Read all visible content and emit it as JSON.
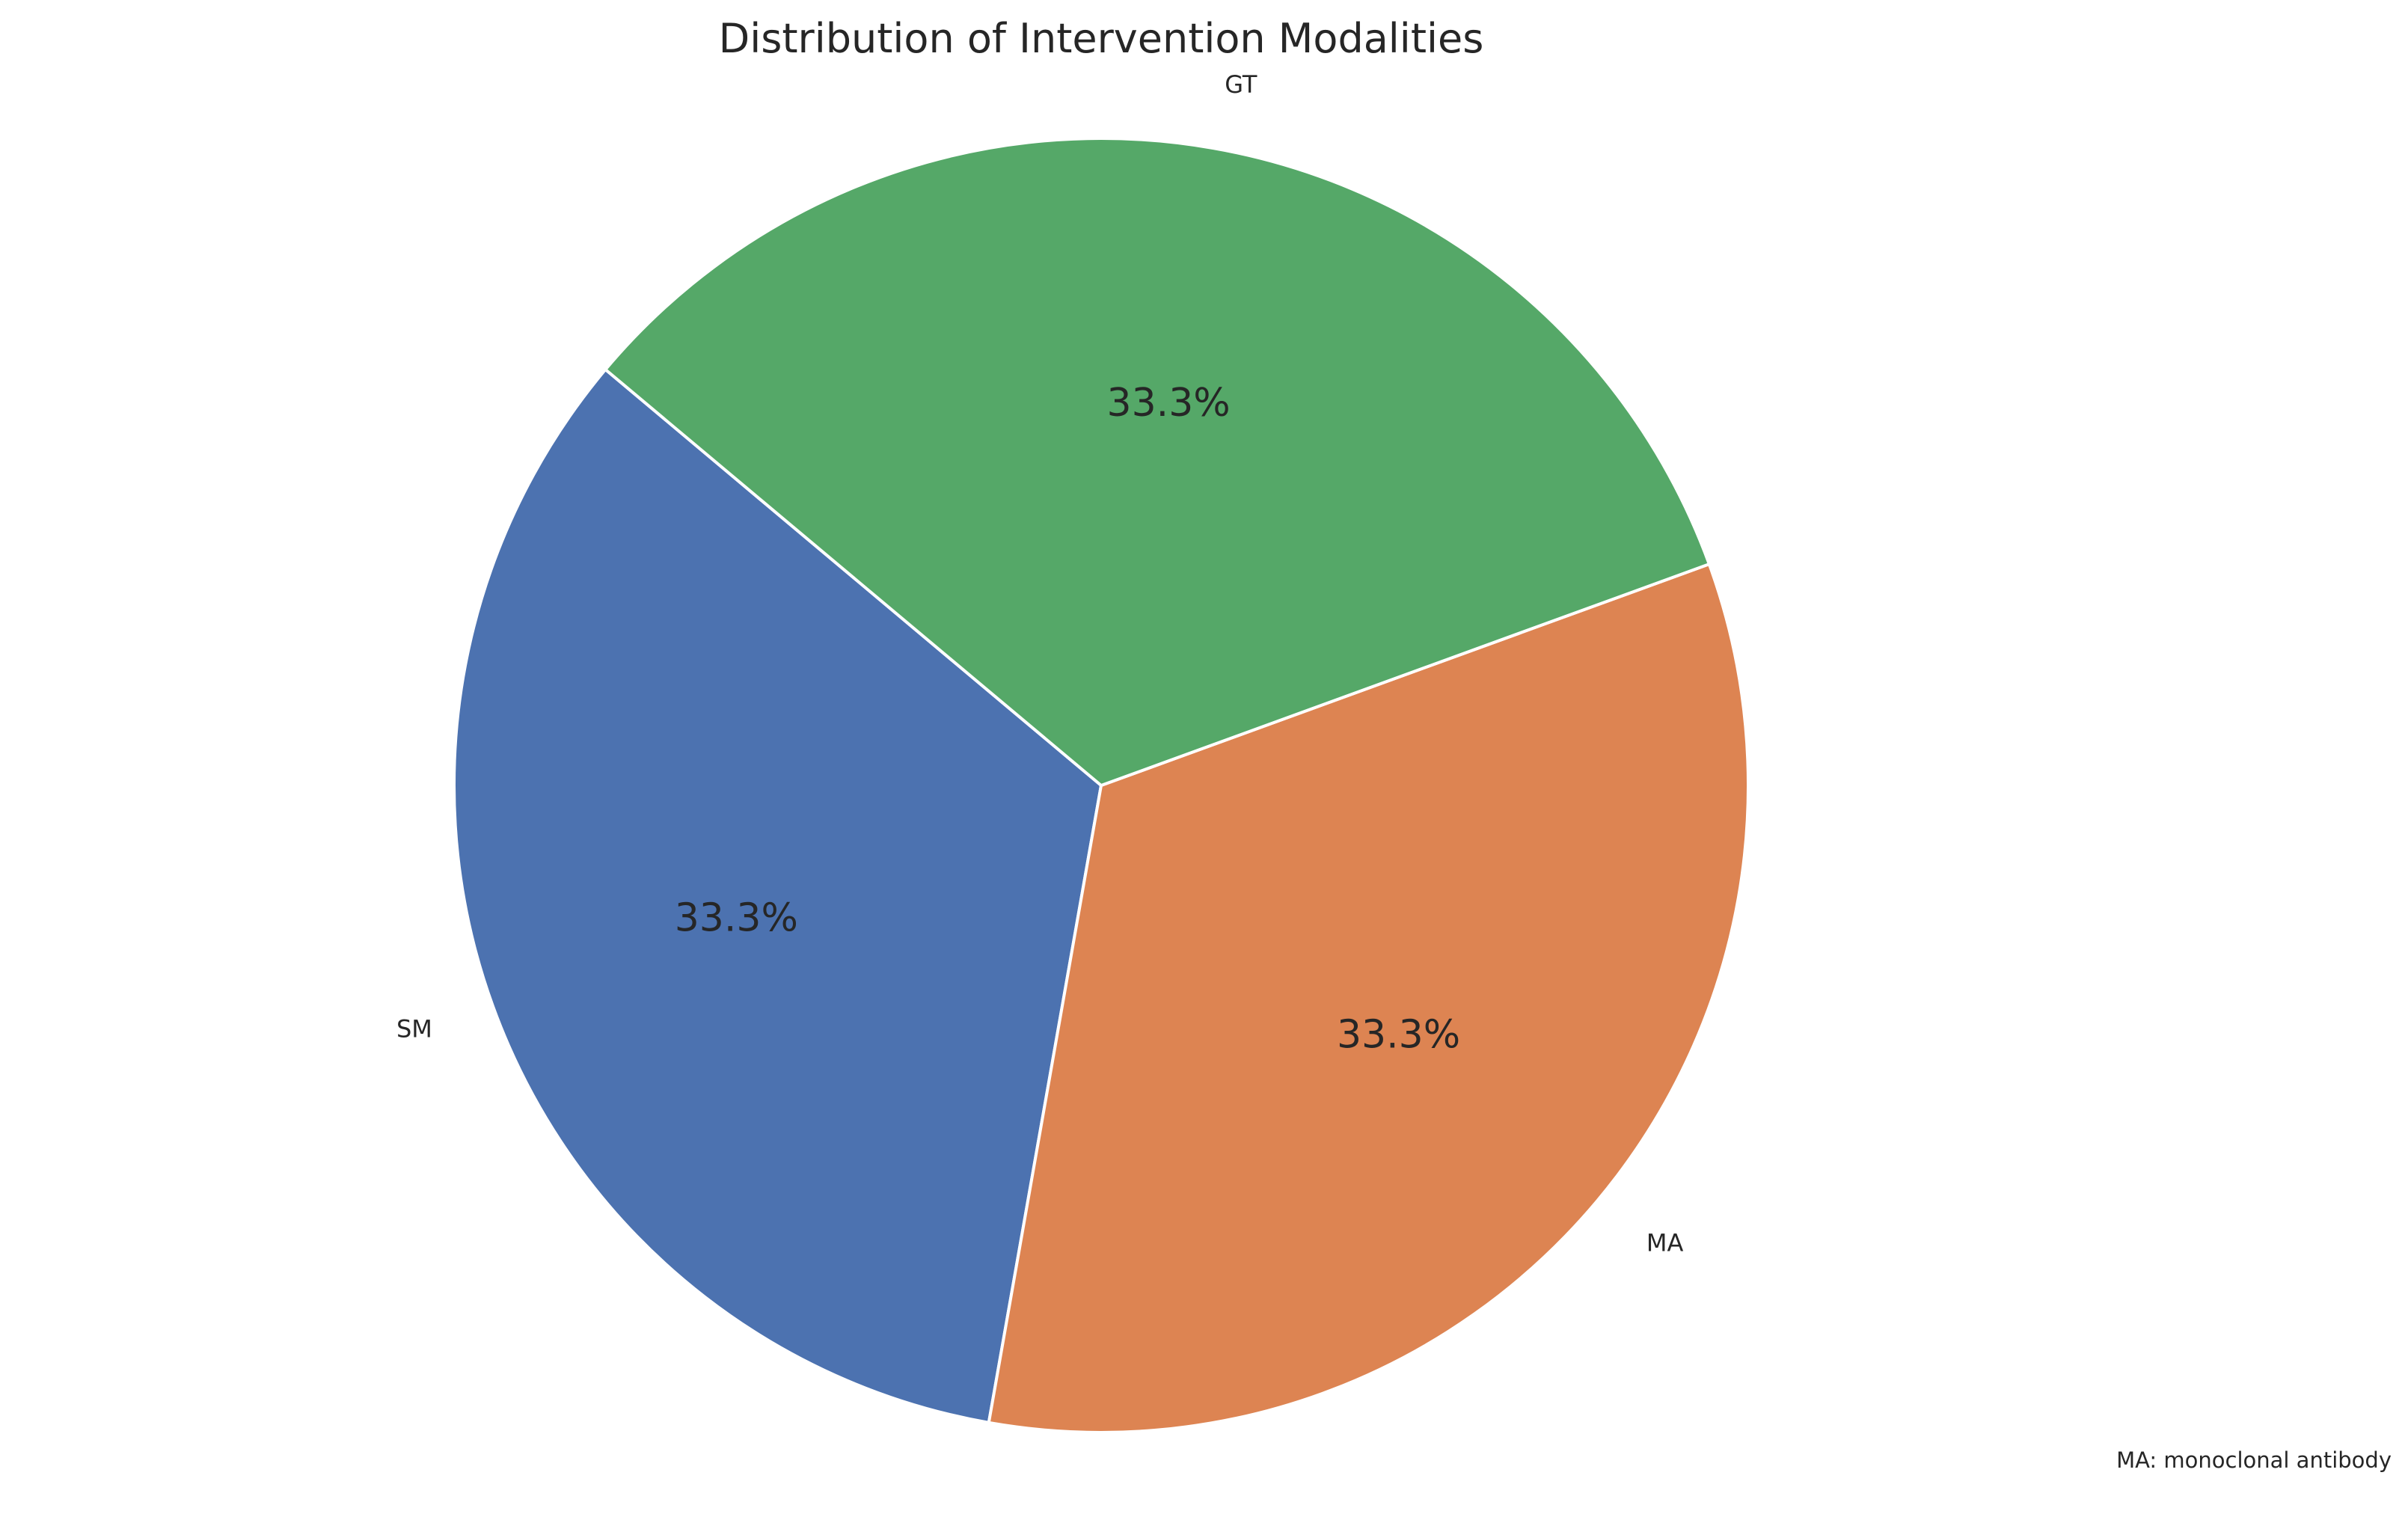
{
  "chart_data": {
    "type": "pie",
    "title": "Distribution of Intervention Modalities",
    "categories": [
      "SM",
      "MA",
      "GT"
    ],
    "values": [
      1,
      1,
      1
    ],
    "percent_labels": [
      "33.3%",
      "33.3%",
      "33.3%"
    ],
    "colors": [
      "#4c72b0",
      "#dd8452",
      "#55a868"
    ],
    "start_angle_deg": 140,
    "direction": "counterclockwise",
    "footnote": "MA: monoclonal antibody"
  }
}
